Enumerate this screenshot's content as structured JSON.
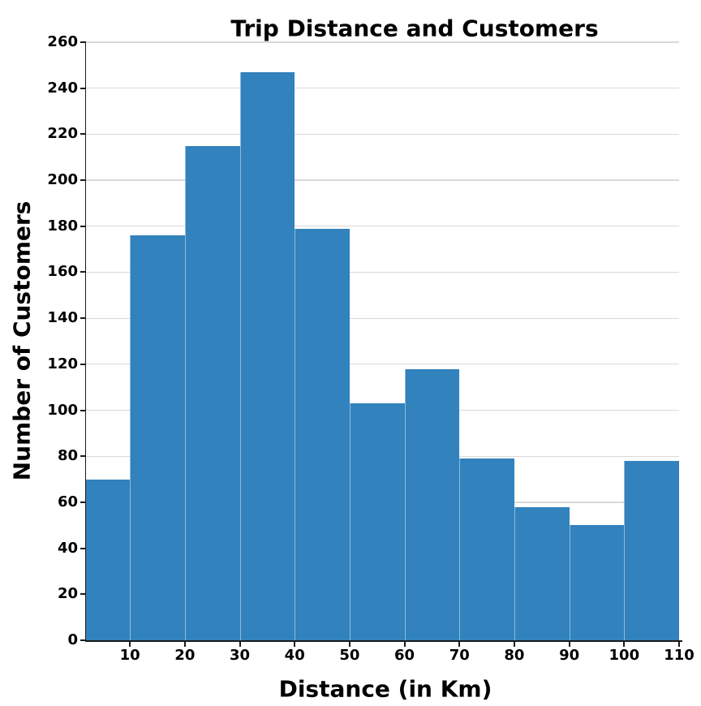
{
  "chart_data": {
    "type": "bar",
    "subtype": "histogram",
    "title": "Trip Distance and Customers",
    "xlabel": "Distance (in Km)",
    "ylabel": "Number of Customers",
    "bin_edges": [
      2,
      10,
      20,
      30,
      40,
      50,
      60,
      70,
      80,
      90,
      100,
      110
    ],
    "counts": [
      70,
      176,
      215,
      247,
      179,
      103,
      118,
      79,
      58,
      50,
      78
    ],
    "x_ticks": [
      10,
      20,
      30,
      40,
      50,
      60,
      70,
      80,
      90,
      100,
      110
    ],
    "y_ticks": [
      0,
      20,
      40,
      60,
      80,
      100,
      120,
      140,
      160,
      180,
      200,
      220,
      240,
      260
    ],
    "xlim": [
      2,
      110
    ],
    "ylim": [
      0,
      260
    ],
    "grid": "horizontal-only",
    "legend": "none",
    "colors": {
      "bar": "#3182bd",
      "grid": "#d9d9d9",
      "spine": "#1a1a1a",
      "text": "#000000",
      "background": "#ffffff"
    }
  }
}
